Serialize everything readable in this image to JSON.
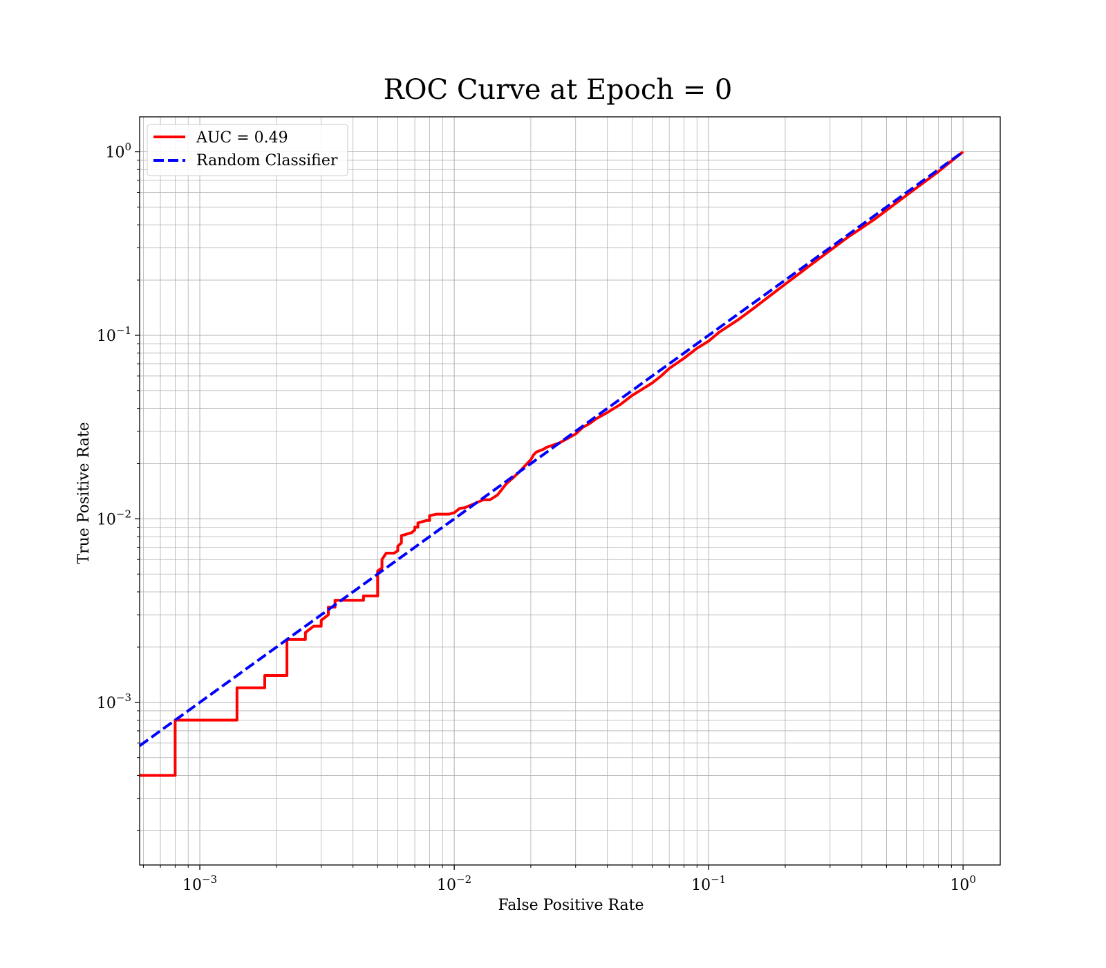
{
  "chart_data": {
    "type": "line",
    "title": "ROC Curve at Epoch = 0",
    "xlabel": "False Positive Rate",
    "ylabel": "True Positive Rate",
    "xscale": "log",
    "yscale": "log",
    "xlim": [
      0.00058,
      1.4
    ],
    "ylim": [
      0.00013,
      1.55
    ],
    "grid": "major and minor",
    "legend_position": "top-left",
    "x_tick_values": [
      0.001,
      0.01,
      0.1,
      1
    ],
    "y_tick_values": [
      0.001,
      0.01,
      0.1,
      1
    ],
    "x_tick_labels": [
      {
        "base": "10",
        "exp": "−3"
      },
      {
        "base": "10",
        "exp": "−2"
      },
      {
        "base": "10",
        "exp": "−1"
      },
      {
        "base": "10",
        "exp": "0"
      }
    ],
    "y_tick_labels": [
      {
        "base": "10",
        "exp": "−3"
      },
      {
        "base": "10",
        "exp": "−2"
      },
      {
        "base": "10",
        "exp": "−1"
      },
      {
        "base": "10",
        "exp": "0"
      }
    ],
    "series": [
      {
        "name": "AUC = 0.49",
        "color": "#ff0000",
        "style": "solid",
        "x": [
          0.00058,
          0.0008,
          0.0008,
          0.0014,
          0.0014,
          0.0018,
          0.0018,
          0.0022,
          0.0022,
          0.0026,
          0.0026,
          0.0028,
          0.003,
          0.003,
          0.0032,
          0.0032,
          0.0034,
          0.0034,
          0.0044,
          0.0044,
          0.005,
          0.005,
          0.0052,
          0.0052,
          0.0054,
          0.0058,
          0.006,
          0.006,
          0.0062,
          0.0062,
          0.0068,
          0.007,
          0.007,
          0.0072,
          0.0072,
          0.0078,
          0.008,
          0.008,
          0.0085,
          0.0095,
          0.01,
          0.0105,
          0.011,
          0.012,
          0.0125,
          0.013,
          0.0138,
          0.0142,
          0.0148,
          0.016,
          0.017,
          0.018,
          0.019,
          0.02,
          0.0205,
          0.021,
          0.0225,
          0.023,
          0.024,
          0.026,
          0.028,
          0.03,
          0.032,
          0.034,
          0.036,
          0.04,
          0.045,
          0.05,
          0.055,
          0.06,
          0.065,
          0.07,
          0.08,
          0.09,
          0.1,
          0.11,
          0.13,
          0.15,
          0.17,
          0.2,
          0.25,
          0.3,
          0.35,
          0.4,
          0.45,
          0.5,
          0.6,
          0.7,
          0.8,
          0.9,
          1.0
        ],
        "y": [
          0.0004,
          0.0004,
          0.0008,
          0.0008,
          0.0012,
          0.0012,
          0.0014,
          0.0014,
          0.0022,
          0.0022,
          0.0024,
          0.0026,
          0.0026,
          0.0028,
          0.003,
          0.0033,
          0.0033,
          0.0036,
          0.0036,
          0.0038,
          0.0038,
          0.0052,
          0.0054,
          0.006,
          0.0065,
          0.0065,
          0.0067,
          0.0071,
          0.0074,
          0.0081,
          0.0084,
          0.0087,
          0.009,
          0.009,
          0.0095,
          0.0098,
          0.0098,
          0.0104,
          0.0106,
          0.0106,
          0.0108,
          0.0114,
          0.0115,
          0.0121,
          0.0124,
          0.0127,
          0.0127,
          0.013,
          0.0135,
          0.0155,
          0.0167,
          0.018,
          0.0195,
          0.021,
          0.0223,
          0.0231,
          0.024,
          0.0245,
          0.025,
          0.026,
          0.0275,
          0.029,
          0.0315,
          0.033,
          0.035,
          0.038,
          0.042,
          0.047,
          0.051,
          0.055,
          0.06,
          0.066,
          0.075,
          0.085,
          0.093,
          0.104,
          0.121,
          0.14,
          0.16,
          0.19,
          0.24,
          0.29,
          0.34,
          0.385,
          0.43,
          0.48,
          0.58,
          0.68,
          0.78,
          0.89,
          1.0
        ]
      },
      {
        "name": "Random Classifier",
        "color": "#0000ff",
        "style": "dashed",
        "x": [
          0.00058,
          1.0
        ],
        "y": [
          0.00058,
          1.0
        ]
      }
    ]
  }
}
